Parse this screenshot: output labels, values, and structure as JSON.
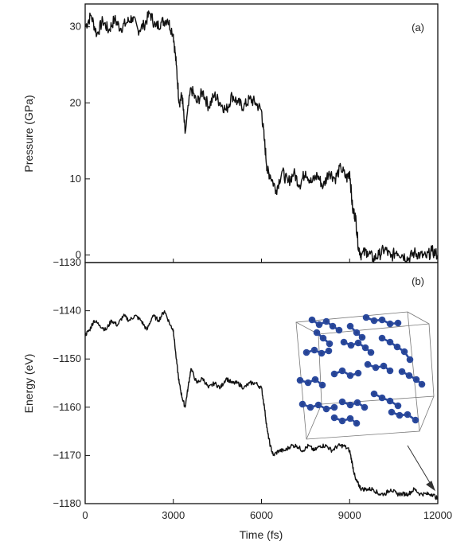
{
  "chart_data": [
    {
      "panel": "(a)",
      "type": "line",
      "xlabel": "",
      "ylabel": "Pressure (GPa)",
      "xlim": [
        0,
        12000
      ],
      "ylim": [
        -1,
        33
      ],
      "yticks": [
        0,
        10,
        20,
        30
      ],
      "ytick_labels": [
        "0",
        "10",
        "20",
        "30"
      ],
      "series": [
        {
          "color": "#111111",
          "x": [
            0,
            200,
            400,
            600,
            800,
            1000,
            1200,
            1400,
            1600,
            1800,
            2000,
            2200,
            2400,
            2600,
            2800,
            3000,
            3100,
            3200,
            3300,
            3400,
            3600,
            3800,
            4000,
            4200,
            4400,
            4600,
            4800,
            5000,
            5200,
            5400,
            5600,
            5800,
            6000,
            6100,
            6200,
            6300,
            6500,
            6700,
            6900,
            7100,
            7300,
            7500,
            7700,
            7900,
            8100,
            8300,
            8500,
            8700,
            8900,
            9000,
            9100,
            9200,
            9300,
            9400,
            9600,
            9800,
            10000,
            10200,
            10400,
            10600,
            10800,
            11000,
            11200,
            11400,
            11600,
            11800,
            12000
          ],
          "y": [
            30.0,
            31.5,
            29.0,
            30.8,
            29.5,
            31.0,
            29.8,
            30.5,
            31.2,
            29.6,
            30.2,
            31.8,
            30.0,
            30.6,
            31.0,
            29.0,
            25.0,
            20.0,
            21.0,
            16.0,
            22.0,
            20.0,
            21.5,
            19.5,
            21.0,
            20.0,
            19.0,
            21.0,
            20.0,
            19.5,
            20.5,
            20.0,
            19.0,
            15.0,
            11.0,
            10.5,
            8.5,
            11.0,
            9.5,
            10.8,
            9.2,
            11.0,
            9.5,
            10.5,
            9.0,
            11.0,
            10.0,
            11.5,
            10.0,
            11.0,
            6.0,
            5.0,
            1.0,
            0.0,
            0.5,
            -0.5,
            0.0,
            0.8,
            -0.3,
            0.5,
            0.0,
            -0.5,
            0.3,
            0.0,
            -0.3,
            0.5,
            0.0
          ]
        }
      ]
    },
    {
      "panel": "(b)",
      "type": "line",
      "xlabel": "Time (fs)",
      "ylabel": "Energy (eV)",
      "xlim": [
        0,
        12000
      ],
      "ylim": [
        -1180,
        -1130
      ],
      "xticks": [
        0,
        3000,
        6000,
        9000,
        12000
      ],
      "xtick_labels": [
        "0",
        "3000",
        "6000",
        "9000",
        "12000"
      ],
      "yticks": [
        -1130,
        -1140,
        -1150,
        -1160,
        -1170,
        -1180
      ],
      "ytick_labels": [
        "−1130",
        "−1140",
        "−1150",
        "−1160",
        "−1170",
        "−1180"
      ],
      "series": [
        {
          "color": "#111111",
          "x": [
            0,
            150,
            300,
            500,
            700,
            900,
            1100,
            1300,
            1500,
            1700,
            1900,
            2100,
            2300,
            2500,
            2700,
            2900,
            3000,
            3100,
            3200,
            3300,
            3400,
            3500,
            3600,
            3800,
            4000,
            4200,
            4400,
            4600,
            4800,
            5000,
            5200,
            5400,
            5600,
            5800,
            6000,
            6100,
            6200,
            6300,
            6400,
            6600,
            6800,
            7000,
            7200,
            7400,
            7600,
            7800,
            8000,
            8200,
            8400,
            8600,
            8800,
            9000,
            9100,
            9200,
            9300,
            9400,
            9600,
            9800,
            10000,
            10200,
            10400,
            10600,
            10800,
            11000,
            11200,
            11400,
            11600,
            11800,
            12000
          ],
          "y": [
            -1145,
            -1144,
            -1142,
            -1143,
            -1144,
            -1142,
            -1143,
            -1141,
            -1142,
            -1141,
            -1142,
            -1144,
            -1141,
            -1142,
            -1140,
            -1143,
            -1144,
            -1150,
            -1155,
            -1158,
            -1160,
            -1156,
            -1152,
            -1155,
            -1154,
            -1156,
            -1155,
            -1156,
            -1154,
            -1155,
            -1155,
            -1156,
            -1155,
            -1155,
            -1156,
            -1160,
            -1165,
            -1168,
            -1170,
            -1169,
            -1169,
            -1168,
            -1168,
            -1169,
            -1168,
            -1169,
            -1168,
            -1168,
            -1169,
            -1168,
            -1168,
            -1169,
            -1172,
            -1175,
            -1176,
            -1177,
            -1177,
            -1177,
            -1178,
            -1178,
            -1177,
            -1178,
            -1178,
            -1178,
            -1177,
            -1178,
            -1178,
            -1178,
            -1179
          ]
        }
      ]
    }
  ]
}
